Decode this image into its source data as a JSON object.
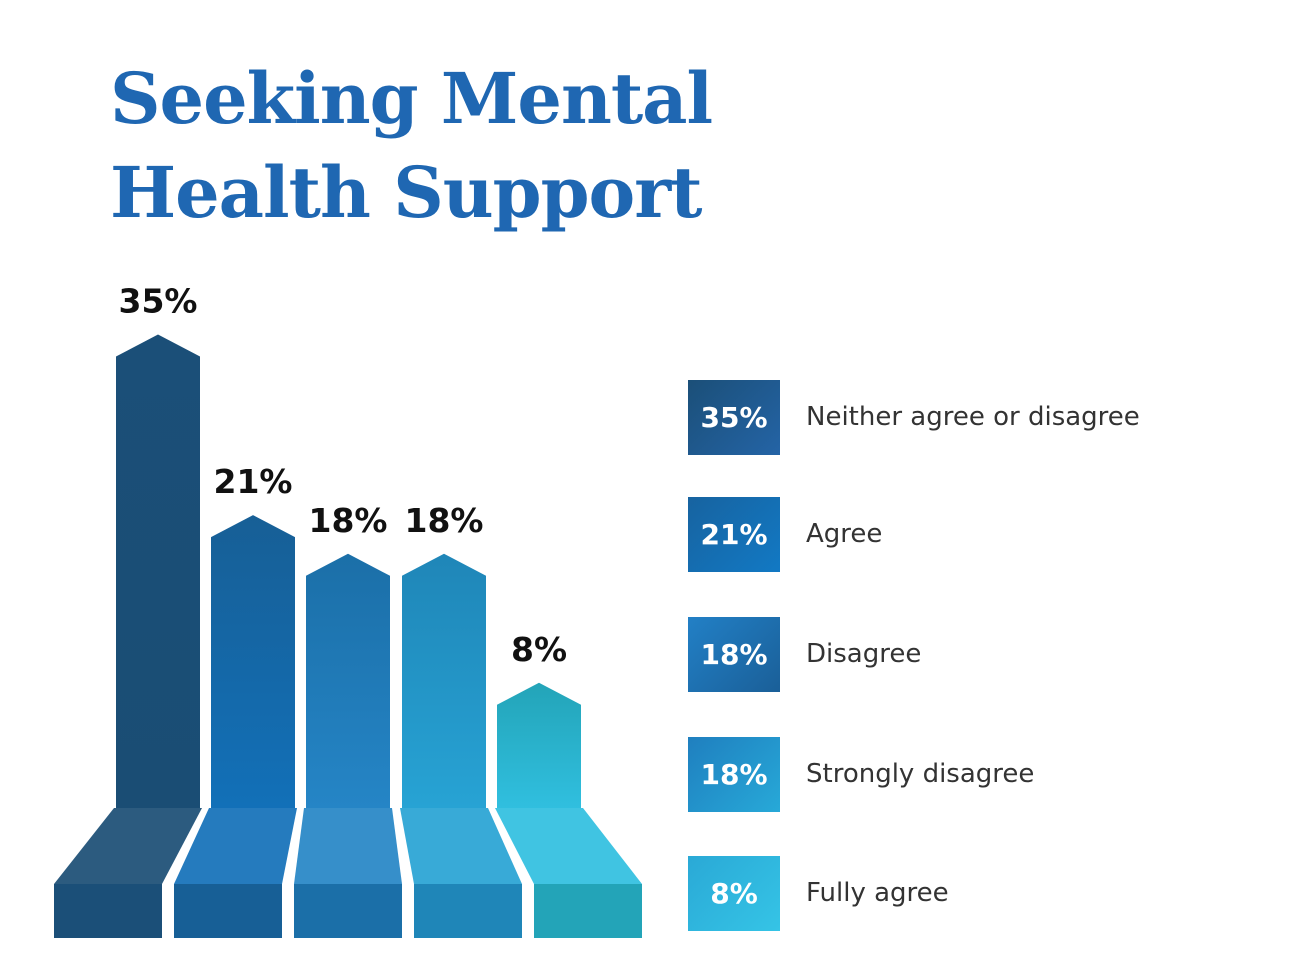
{
  "title_lines": [
    "Seeking Mental",
    "Health Support"
  ],
  "chart_data": {
    "type": "bar",
    "title": "Seeking Mental Health Support",
    "categories": [
      "Neither agree or disagree",
      "Agree",
      "Disagree",
      "Strongly disagree",
      "Fully agree"
    ],
    "values": [
      35,
      21,
      18,
      18,
      8
    ],
    "value_labels": [
      "35%",
      "21%",
      "18%",
      "18%",
      "8%"
    ],
    "unit": "%",
    "grid": false,
    "legend_position": "right",
    "colors": [
      {
        "top": "#1b4f78",
        "bottom": "#1a4d74"
      },
      {
        "top": "#175f96",
        "bottom": "#1270b8"
      },
      {
        "top": "#1b6fa8",
        "bottom": "#2585c6"
      },
      {
        "top": "#1f86b8",
        "bottom": "#27a3d4"
      },
      {
        "top": "#23a4b8",
        "bottom": "#30bfdf"
      }
    ]
  },
  "legend": {
    "items": [
      {
        "value": "35%",
        "label": "Neither agree or disagree",
        "color": "#1b4f78",
        "color2": "#2464a6"
      },
      {
        "value": "21%",
        "label": "Agree",
        "color": "#1763a0",
        "color2": "#1279c4"
      },
      {
        "value": "18%",
        "label": "Disagree",
        "color": "#2280c6",
        "color2": "#1a5f98"
      },
      {
        "value": "18%",
        "label": "Strongly disagree",
        "color": "#1f7fbf",
        "color2": "#27a9d8"
      },
      {
        "value": "8%",
        "label": "Fully agree",
        "color": "#2aa9d6",
        "color2": "#35c4e6"
      }
    ]
  }
}
